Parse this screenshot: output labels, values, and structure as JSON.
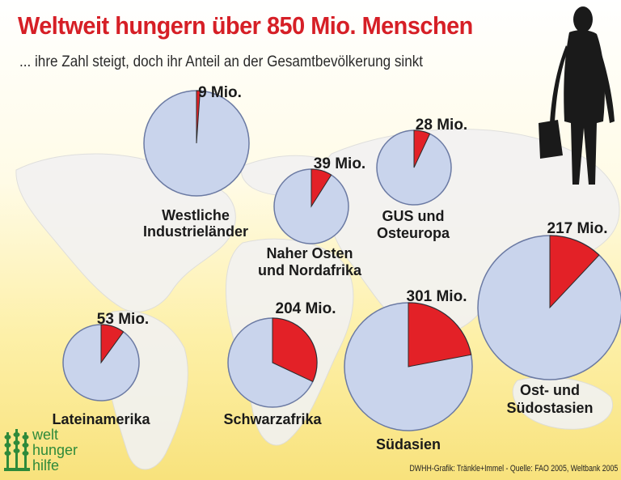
{
  "title": "Weltweit hungern über 850 Mio. Menschen",
  "subtitle": "... ihre Zahl steigt, doch ihr Anteil an der Gesamtbevölkerung sinkt",
  "source": "DWHH-Grafik: Tränkle+Immel - Quelle: FAO 2005, Weltbank 2005",
  "logo": {
    "lines": [
      "welt",
      "hunger",
      "hilfe"
    ]
  },
  "colors": {
    "hungry": "#e32127",
    "population": "#c9d4ec",
    "title": "#d61f26",
    "map": "#f2f2f2",
    "logo": "#2e8a3a"
  },
  "chart_data": {
    "type": "pie",
    "regions": [
      {
        "name": "Westliche Industrieländer",
        "label_lines": [
          "Westliche",
          "Industrieländer"
        ],
        "value_label": "9 Mio.",
        "value": 9,
        "share": 0.011
      },
      {
        "name": "Naher Osten und Nordafrika",
        "label_lines": [
          "Naher Osten",
          "und Nordafrika"
        ],
        "value_label": "39 Mio.",
        "value": 39,
        "share": 0.09
      },
      {
        "name": "GUS und Osteuropa",
        "label_lines": [
          "GUS und",
          "Osteuropa"
        ],
        "value_label": "28 Mio.",
        "value": 28,
        "share": 0.07
      },
      {
        "name": "Lateinamerika",
        "label_lines": [
          "Lateinamerika"
        ],
        "value_label": "53 Mio.",
        "value": 53,
        "share": 0.1
      },
      {
        "name": "Schwarzafrika",
        "label_lines": [
          "Schwarzafrika"
        ],
        "value_label": "204 Mio.",
        "value": 204,
        "share": 0.32
      },
      {
        "name": "Südasien",
        "label_lines": [
          "Südasien"
        ],
        "value_label": "301 Mio.",
        "value": 301,
        "share": 0.22
      },
      {
        "name": "Ost- und Südostasien",
        "label_lines": [
          "Ost- und",
          "Südostasien"
        ],
        "value_label": "217 Mio.",
        "value": 217,
        "share": 0.12
      }
    ]
  }
}
